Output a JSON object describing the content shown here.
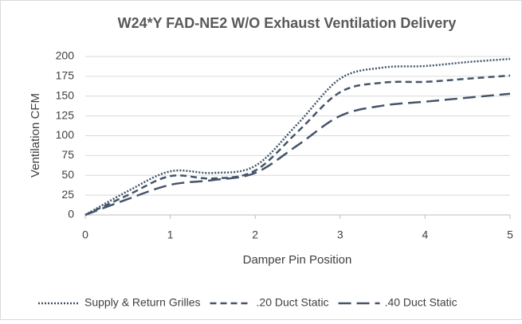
{
  "chart_data": {
    "type": "line",
    "title": "W24*Y FAD-NE2 W/O Exhaust Ventilation Delivery",
    "x_label": "Damper Pin Position",
    "y_label": "Ventilation CFM",
    "x": [
      0,
      0.5,
      1,
      1.5,
      2,
      2.5,
      3,
      3.5,
      4,
      4.5,
      5
    ],
    "series": [
      {
        "name": "Supply & Return Grilles",
        "color": "#44546a",
        "dash": "dotted",
        "values": [
          0,
          30,
          55,
          53,
          62,
          115,
          172,
          186,
          188,
          193,
          197
        ]
      },
      {
        "name": ".20 Duct Static",
        "color": "#44546a",
        "dash": "dashed",
        "values": [
          0,
          25,
          49,
          46,
          56,
          105,
          155,
          167,
          168,
          172,
          176
        ]
      },
      {
        "name": ".40 Duct Static",
        "color": "#44546a",
        "dash": "longdash",
        "values": [
          0,
          20,
          38,
          44,
          53,
          88,
          125,
          138,
          143,
          148,
          153
        ]
      }
    ],
    "xlim": [
      0,
      5
    ],
    "xticks": [
      0,
      1,
      2,
      3,
      4,
      5
    ],
    "ylim": [
      0,
      200
    ],
    "yticks": [
      0,
      25,
      50,
      75,
      100,
      125,
      150,
      175,
      200
    ],
    "grid": true,
    "smooth": true,
    "legend": "bottom"
  }
}
